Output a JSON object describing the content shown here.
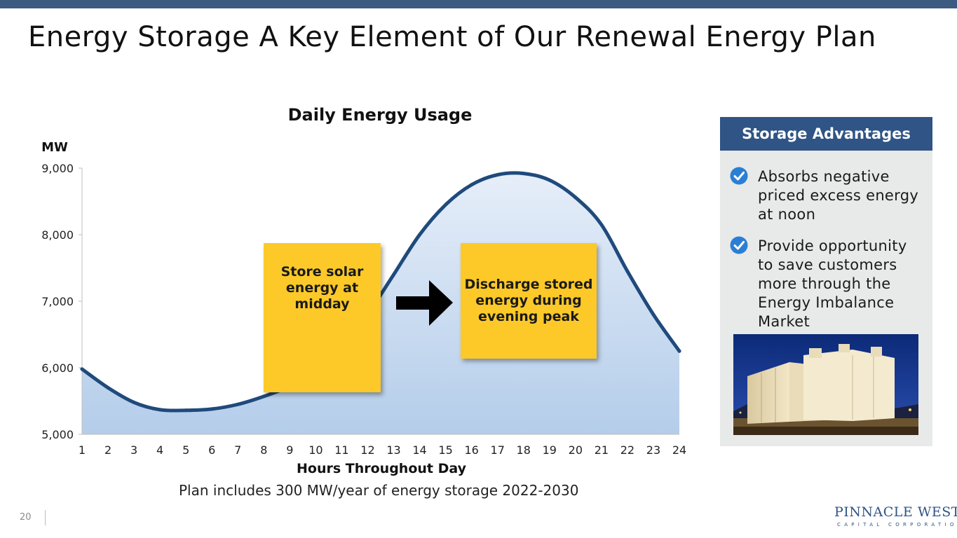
{
  "slide": {
    "title": "Energy Storage A Key Element of Our Renewal Energy Plan",
    "page_number": "20",
    "footer_note": "Plan includes 300 MW/year of energy storage 2022-2030"
  },
  "chart_data": {
    "type": "area",
    "title": "Daily Energy Usage",
    "xlabel": "Hours Throughout Day",
    "ylabel": "MW",
    "x": [
      1,
      2,
      3,
      4,
      5,
      6,
      7,
      8,
      9,
      10,
      11,
      12,
      13,
      14,
      15,
      16,
      17,
      18,
      19,
      20,
      21,
      22,
      23,
      24
    ],
    "values": [
      5980,
      5700,
      5480,
      5370,
      5360,
      5380,
      5450,
      5570,
      5720,
      5920,
      6250,
      6800,
      7400,
      8000,
      8450,
      8750,
      8900,
      8920,
      8820,
      8560,
      8150,
      7450,
      6800,
      6250
    ],
    "ylim": [
      5000,
      9000
    ],
    "yticks": [
      5000,
      6000,
      7000,
      8000,
      9000
    ],
    "ytick_labels": [
      "5,000",
      "6,000",
      "7,000",
      "8,000",
      "9,000"
    ],
    "grid": false,
    "annotations": [
      {
        "text": "Store solar energy at midday"
      },
      {
        "text": "Discharge stored energy during evening peak"
      }
    ],
    "colors": {
      "line": "#1f4a7c",
      "fill_top": "#e6eef9",
      "fill_bottom": "#b4cdea",
      "callout": "#fcc928"
    }
  },
  "panel": {
    "header": "Storage Advantages",
    "items": [
      {
        "text": "Absorbs negative priced excess energy at noon"
      },
      {
        "text": "Provide opportunity to save customers more through the Energy Imbalance Market"
      }
    ],
    "icon": "check-circle-icon"
  },
  "logo": {
    "name": "PINNACLE WEST",
    "subtitle": "CAPITAL CORPORATION"
  }
}
